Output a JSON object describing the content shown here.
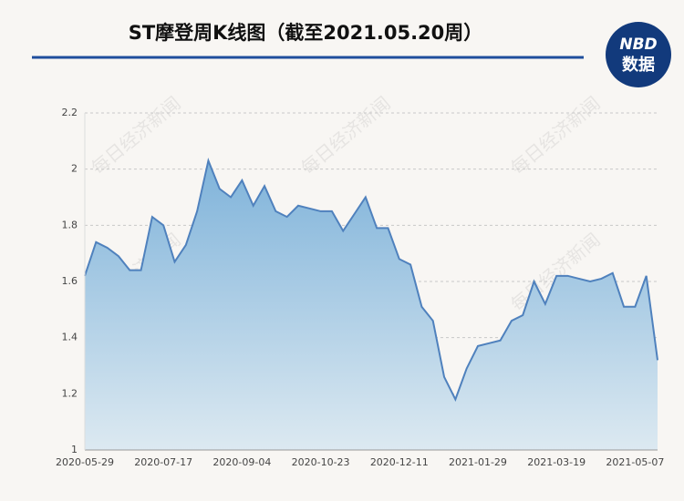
{
  "chart_data": {
    "type": "area",
    "title": "ST摩登周K线图（截至2021.05.20周）",
    "logo": {
      "top": "NBD",
      "bottom": "数据"
    },
    "watermark": "每日经济新闻",
    "categories": [
      "2020-05-29",
      null,
      null,
      null,
      null,
      null,
      null,
      "2020-07-17",
      null,
      null,
      null,
      null,
      null,
      null,
      "2020-09-04",
      null,
      null,
      null,
      null,
      null,
      null,
      "2020-10-23",
      null,
      null,
      null,
      null,
      null,
      null,
      "2020-12-11",
      null,
      null,
      null,
      null,
      null,
      null,
      "2021-01-29",
      null,
      null,
      null,
      null,
      null,
      null,
      "2021-03-19",
      null,
      null,
      null,
      null,
      null,
      null,
      "2021-05-07",
      null,
      null
    ],
    "values": [
      1.62,
      1.74,
      1.72,
      1.69,
      1.64,
      1.64,
      1.83,
      1.8,
      1.67,
      1.73,
      1.85,
      2.03,
      1.93,
      1.9,
      1.96,
      1.87,
      1.94,
      1.85,
      1.83,
      1.87,
      1.86,
      1.85,
      1.85,
      1.78,
      1.84,
      1.9,
      1.79,
      1.79,
      1.68,
      1.66,
      1.51,
      1.46,
      1.26,
      1.18,
      1.29,
      1.37,
      1.38,
      1.39,
      1.46,
      1.48,
      1.6,
      1.52,
      1.62,
      1.62,
      1.61,
      1.6,
      1.61,
      1.63,
      1.51,
      1.51,
      1.62,
      1.32
    ],
    "color": "#4f81bd",
    "ylim": [
      1,
      2.2
    ],
    "yticks": [
      1,
      1.2,
      1.4,
      1.6,
      1.8,
      2,
      2.2
    ],
    "grid": true
  }
}
